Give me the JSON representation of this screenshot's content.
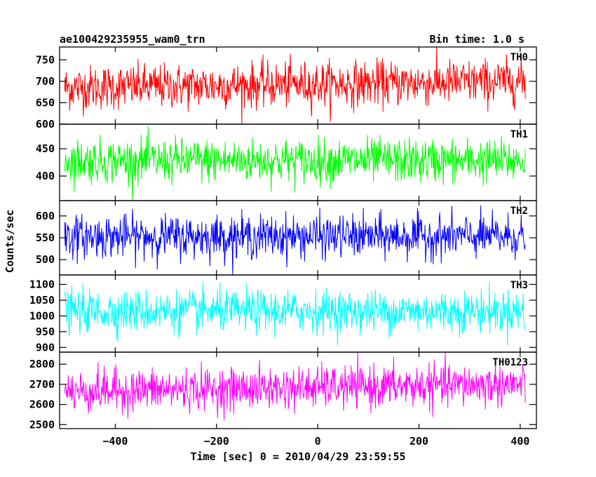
{
  "chart_data": {
    "type": "line",
    "title_left": "ae100429235955_wam0_trn",
    "title_right": "Bin time: 1.0 s",
    "xlabel": "Time [sec] 0 = 2010/04/29 23:59:55",
    "ylabel": "Counts/sec",
    "xlim": [
      -510,
      432
    ],
    "xticks": [
      -400,
      -200,
      0,
      200,
      400
    ],
    "x_start": -500,
    "x_end": 410,
    "x_step": 1,
    "panels": [
      {
        "name": "TH0",
        "color": "#ff0000",
        "ylim": [
          600,
          780
        ],
        "yticks": [
          600,
          650,
          700,
          750
        ],
        "mean": 685,
        "trend_end": 700,
        "sigma": 26
      },
      {
        "name": "TH1",
        "color": "#00ff00",
        "ylim": [
          355,
          495
        ],
        "yticks": [
          400,
          450
        ],
        "mean": 428,
        "trend_end": 428,
        "sigma": 20
      },
      {
        "name": "TH2",
        "color": "#0000ff",
        "ylim": [
          465,
          635
        ],
        "yticks": [
          500,
          550,
          600
        ],
        "mean": 553,
        "trend_end": 553,
        "sigma": 24
      },
      {
        "name": "TH3",
        "color": "#00ffff",
        "ylim": [
          885,
          1130
        ],
        "yticks": [
          900,
          950,
          1000,
          1050,
          1100
        ],
        "mean": 1015,
        "trend_end": 1015,
        "sigma": 33
      },
      {
        "name": "TH0123",
        "color": "#ff00ff",
        "ylim": [
          2480,
          2860
        ],
        "yticks": [
          2500,
          2600,
          2700,
          2800
        ],
        "mean": 2665,
        "trend_end": 2700,
        "sigma": 52
      }
    ]
  }
}
